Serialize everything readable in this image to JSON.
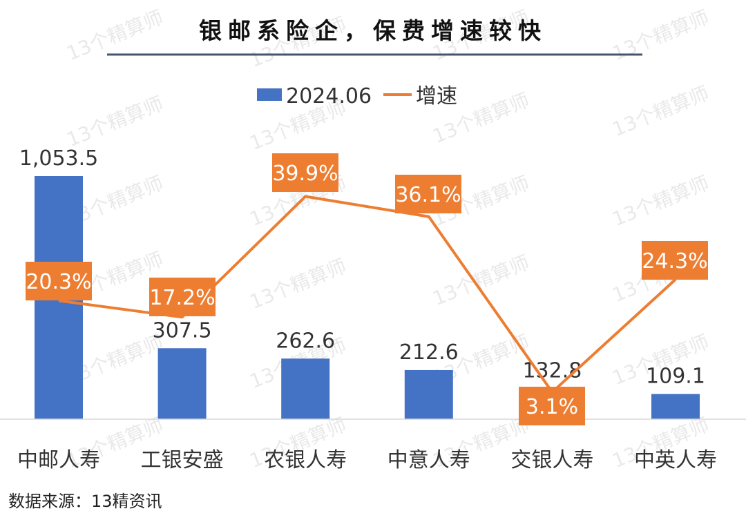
{
  "chart_data": {
    "type": "bar",
    "title": "银邮系险企，保费增速较快",
    "categories": [
      "中邮人寿",
      "工银安盛",
      "农银人寿",
      "中意人寿",
      "交银人寿",
      "中英人寿"
    ],
    "series": [
      {
        "name": "2024.06",
        "type": "bar",
        "color": "#4472C4",
        "values": [
          1053.5,
          307.5,
          262.6,
          212.6,
          132.8,
          109.1
        ],
        "labels": [
          "1,053.5",
          "307.5",
          "262.6",
          "212.6",
          "132.8",
          "109.1"
        ]
      },
      {
        "name": "增速",
        "type": "line",
        "color": "#ED7D31",
        "values": [
          20.3,
          17.2,
          39.9,
          36.1,
          3.1,
          24.3
        ],
        "labels": [
          "20.3%",
          "17.2%",
          "39.9%",
          "36.1%",
          "3.1%",
          "24.3%"
        ]
      }
    ],
    "legend_position": "top-center",
    "grid": false
  },
  "source": "数据来源：13精资讯",
  "watermark": "13个精算师",
  "colors": {
    "bar": "#4472C4",
    "line": "#ED7D31",
    "title_rule": "#44546A",
    "axis": "#D9D9D9"
  }
}
